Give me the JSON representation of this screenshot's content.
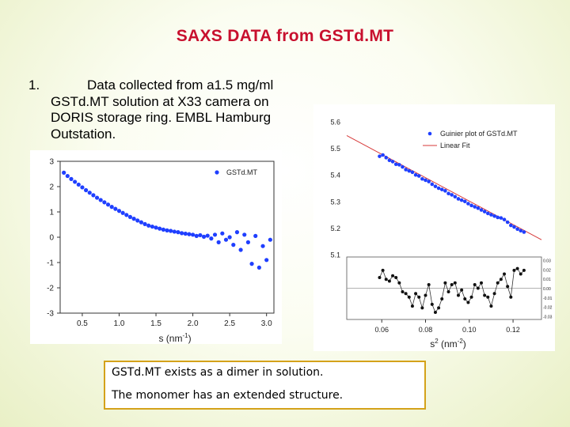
{
  "slide": {
    "title": "SAXS DATA from GSTd.MT",
    "bullet_number": "1.",
    "bullet_lines": [
      "Data collected from a1.5 mg/ml",
      "GSTd.MT  solution at X33 camera on",
      "DORIS storage ring. EMBL Hamburg",
      "Outstation."
    ],
    "conclusion_lines": [
      "GSTd.MT exists as a dimer in solution.",
      "The monomer has an extended structure."
    ]
  },
  "colors": {
    "title": "#c8102e",
    "points": "#1f3fff",
    "fit_line": "#d73a3a",
    "residual_points": "#111111",
    "conclusion_border": "#d4a21a"
  },
  "chart_data": [
    {
      "type": "scatter",
      "title": "",
      "xlabel": "s (nm",
      "xlabel_sup": "-1",
      "xlabel_tail": ")",
      "ylabel": "",
      "xlim": [
        0.2,
        3.1
      ],
      "ylim": [
        -3,
        3
      ],
      "xticks": [
        0.5,
        1.0,
        1.5,
        2.0,
        2.5,
        3.0
      ],
      "xtick_labels": [
        "0.5",
        "1.0",
        "1.5",
        "2.0",
        "2.5",
        "3.0"
      ],
      "yticks": [
        3,
        2,
        1,
        0,
        -1,
        -2,
        -3
      ],
      "ytick_labels": [
        "3",
        "2",
        "1",
        "0",
        "-1",
        "-2",
        "-3"
      ],
      "legend": "top-right",
      "series": [
        {
          "name": "GSTd.MT",
          "x": [
            0.25,
            0.3,
            0.35,
            0.4,
            0.45,
            0.5,
            0.55,
            0.6,
            0.65,
            0.7,
            0.75,
            0.8,
            0.85,
            0.9,
            0.95,
            1.0,
            1.05,
            1.1,
            1.15,
            1.2,
            1.25,
            1.3,
            1.35,
            1.4,
            1.45,
            1.5,
            1.55,
            1.6,
            1.65,
            1.7,
            1.75,
            1.8,
            1.85,
            1.9,
            1.95,
            2.0,
            2.05,
            2.1,
            2.15,
            2.2,
            2.25,
            2.3,
            2.35,
            2.4,
            2.45,
            2.5,
            2.55,
            2.6,
            2.65,
            2.7,
            2.75,
            2.8,
            2.85,
            2.9,
            2.95,
            3.0,
            3.05
          ],
          "y": [
            2.55,
            2.42,
            2.3,
            2.19,
            2.08,
            1.97,
            1.86,
            1.76,
            1.66,
            1.56,
            1.47,
            1.38,
            1.29,
            1.2,
            1.12,
            1.04,
            0.96,
            0.88,
            0.8,
            0.73,
            0.66,
            0.59,
            0.52,
            0.46,
            0.42,
            0.38,
            0.34,
            0.3,
            0.27,
            0.25,
            0.22,
            0.2,
            0.16,
            0.14,
            0.12,
            0.1,
            0.05,
            0.08,
            0.02,
            0.06,
            -0.05,
            0.1,
            -0.2,
            0.15,
            -0.1,
            0.0,
            -0.3,
            0.2,
            -0.5,
            0.1,
            -0.2,
            -1.05,
            0.05,
            -1.2,
            -0.35,
            -0.9,
            -0.1
          ]
        }
      ]
    },
    {
      "type": "scatter",
      "title": "",
      "xlabel": "s",
      "xlabel_sup": "2",
      "xlabel_tail": " (nm",
      "xlabel_sup2": "-2",
      "xlabel_tail2": ")",
      "ylabel": "",
      "xlim": [
        0.044,
        0.133
      ],
      "ylim": [
        5.1,
        5.6
      ],
      "xticks": [
        0.06,
        0.08,
        0.1,
        0.12
      ],
      "xtick_labels": [
        "0.06",
        "0.08",
        "0.10",
        "0.12"
      ],
      "yticks": [
        5.6,
        5.5,
        5.4,
        5.3,
        5.2,
        5.1
      ],
      "ytick_labels": [
        "5.6",
        "5.5",
        "5.4",
        "5.3",
        "5.2",
        "5.1"
      ],
      "legend": "top-right",
      "series": [
        {
          "name": "Guinier plot of GSTd.MT",
          "x": [
            0.059,
            0.0605,
            0.062,
            0.0635,
            0.065,
            0.0665,
            0.068,
            0.0695,
            0.071,
            0.0725,
            0.074,
            0.0755,
            0.077,
            0.0785,
            0.08,
            0.0815,
            0.083,
            0.0845,
            0.086,
            0.0875,
            0.089,
            0.0905,
            0.092,
            0.0935,
            0.095,
            0.0965,
            0.098,
            0.0995,
            0.101,
            0.1025,
            0.104,
            0.1055,
            0.107,
            0.1085,
            0.11,
            0.1115,
            0.113,
            0.1145,
            0.116,
            0.1175,
            0.119,
            0.1205,
            0.122,
            0.1235,
            0.125
          ],
          "y": [
            5.47,
            5.475,
            5.465,
            5.455,
            5.45,
            5.44,
            5.438,
            5.43,
            5.42,
            5.415,
            5.41,
            5.4,
            5.396,
            5.385,
            5.38,
            5.375,
            5.365,
            5.357,
            5.35,
            5.345,
            5.34,
            5.33,
            5.325,
            5.318,
            5.31,
            5.305,
            5.3,
            5.292,
            5.285,
            5.28,
            5.275,
            5.268,
            5.262,
            5.255,
            5.25,
            5.245,
            5.24,
            5.238,
            5.232,
            5.222,
            5.21,
            5.204,
            5.196,
            5.19,
            5.185
          ]
        },
        {
          "name": "Linear Fit",
          "x": [
            0.044,
            0.133
          ],
          "y": [
            5.548,
            5.156
          ]
        }
      ],
      "residuals": {
        "yticks": [
          "0.03",
          "0.02",
          "0.01",
          "0.00",
          "-0.01",
          "-0.02",
          "-0.03"
        ],
        "ylim": [
          -0.035,
          0.035
        ],
        "x": [
          0.059,
          0.0605,
          0.062,
          0.0635,
          0.065,
          0.0665,
          0.068,
          0.0695,
          0.071,
          0.0725,
          0.074,
          0.0755,
          0.077,
          0.0785,
          0.08,
          0.0815,
          0.083,
          0.0845,
          0.086,
          0.0875,
          0.089,
          0.0905,
          0.092,
          0.0935,
          0.095,
          0.0965,
          0.098,
          0.0995,
          0.101,
          0.1025,
          0.104,
          0.1055,
          0.107,
          0.1085,
          0.11,
          0.1115,
          0.113,
          0.1145,
          0.116,
          0.1175,
          0.119,
          0.1205,
          0.122,
          0.1235,
          0.125
        ],
        "y": [
          0.012,
          0.02,
          0.01,
          0.008,
          0.014,
          0.012,
          0.006,
          -0.004,
          -0.006,
          -0.01,
          -0.02,
          -0.006,
          -0.01,
          -0.022,
          -0.008,
          0.004,
          -0.018,
          -0.027,
          -0.022,
          -0.012,
          0.006,
          -0.004,
          0.004,
          0.006,
          -0.008,
          -0.002,
          -0.012,
          -0.016,
          -0.01,
          0.004,
          0.0,
          0.006,
          -0.008,
          -0.01,
          -0.02,
          -0.006,
          0.006,
          0.01,
          0.016,
          0.002,
          -0.01,
          0.02,
          0.022,
          0.016,
          0.02
        ]
      }
    }
  ]
}
